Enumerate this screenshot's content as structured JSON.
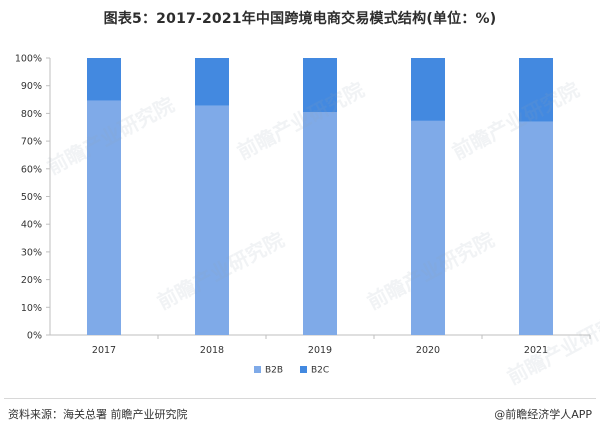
{
  "header": {
    "title": "图表5：2017-2021年中国跨境电商交易模式结构(单位：%)"
  },
  "footer": {
    "source": "资料来源：海关总署 前瞻产业研究院",
    "brand": "@前瞻经济学人APP"
  },
  "watermark": {
    "text": "前瞻产业研究院"
  },
  "colors": {
    "b2b": "#7faae8",
    "b2c": "#4389e0",
    "axis": "#bfbfbf",
    "text": "#333333"
  },
  "chart_data": {
    "type": "bar",
    "stacked": true,
    "categories": [
      "2017",
      "2018",
      "2019",
      "2020",
      "2021"
    ],
    "series": [
      {
        "name": "B2B",
        "values": [
          84.6,
          82.8,
          80.5,
          77.3,
          77.0
        ]
      },
      {
        "name": "B2C",
        "values": [
          15.4,
          17.2,
          19.5,
          22.7,
          23.0
        ]
      }
    ],
    "ylim": [
      0,
      100
    ],
    "yticks": [
      "0%",
      "10%",
      "20%",
      "30%",
      "40%",
      "50%",
      "60%",
      "70%",
      "80%",
      "90%",
      "100%"
    ],
    "grid": false,
    "legend": "bottom-center"
  }
}
